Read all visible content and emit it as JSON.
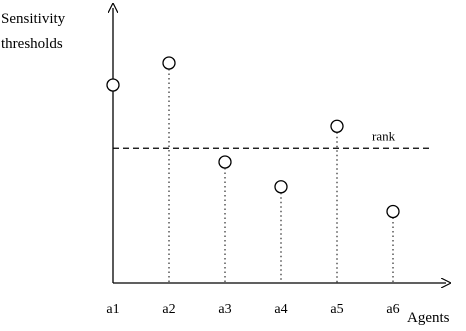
{
  "diagram": {
    "y_axis_label_line1": "Sensitivity",
    "y_axis_label_line2": "thresholds",
    "x_axis_label": "Agents",
    "rank_label": "rank",
    "agents": [
      {
        "label": "a1",
        "threshold": 0.72
      },
      {
        "label": "a2",
        "threshold": 0.8
      },
      {
        "label": "a3",
        "threshold": 0.44
      },
      {
        "label": "a4",
        "threshold": 0.35
      },
      {
        "label": "a5",
        "threshold": 0.57
      },
      {
        "label": "a6",
        "threshold": 0.26
      }
    ],
    "rank_level": 0.49,
    "a1_has_dropline": false
  }
}
